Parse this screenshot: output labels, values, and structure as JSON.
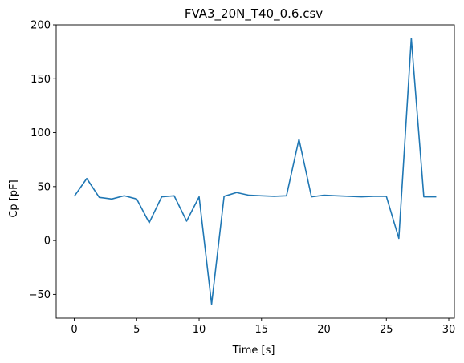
{
  "chart_data": {
    "type": "line",
    "title": "FVA3_20N_T40_0.6.csv",
    "xlabel": "Time [s]",
    "ylabel": "Cp [pF]",
    "xlim": [
      -1.45,
      30.45
    ],
    "ylim": [
      -72,
      200
    ],
    "xticks": [
      0,
      5,
      10,
      15,
      20,
      25,
      30
    ],
    "yticks": [
      -50,
      0,
      50,
      100,
      150,
      200
    ],
    "xtick_labels": [
      "0",
      "5",
      "10",
      "15",
      "20",
      "25",
      "30"
    ],
    "ytick_labels": [
      "−50",
      "0",
      "50",
      "100",
      "150",
      "200"
    ],
    "grid": false,
    "series": [
      {
        "color": "#1f77b4",
        "x": [
          0,
          1,
          2,
          3,
          4,
          5,
          6,
          7,
          8,
          9,
          10,
          11,
          12,
          13,
          14,
          15,
          16,
          17,
          18,
          19,
          20,
          21,
          22,
          23,
          24,
          25,
          26,
          27,
          28,
          29
        ],
        "y": [
          41,
          57.5,
          40,
          38.5,
          41.5,
          38.5,
          16.5,
          40.5,
          41.5,
          18,
          40.5,
          -59,
          41,
          44.5,
          42,
          41.5,
          41,
          41.5,
          94,
          40.5,
          42,
          41.5,
          41,
          40.5,
          41,
          41,
          2,
          187.5,
          40.5,
          40.5
        ]
      }
    ]
  }
}
